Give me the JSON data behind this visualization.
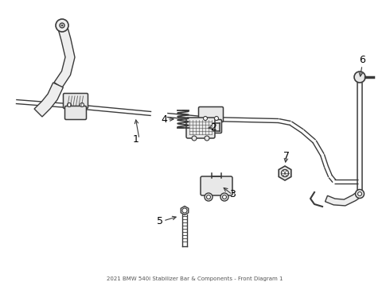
{
  "title": "2021 BMW 540i Stabilizer Bar & Components - Front Diagram 1",
  "background_color": "#ffffff",
  "line_color": "#3a3a3a",
  "label_color": "#000000",
  "fig_width": 4.9,
  "fig_height": 3.6,
  "dpi": 100
}
